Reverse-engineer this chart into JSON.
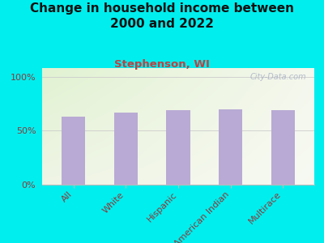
{
  "title": "Change in household income between\n2000 and 2022",
  "subtitle": "Stephenson, WI",
  "categories": [
    "All",
    "White",
    "Hispanic",
    "American Indian",
    "Multirace"
  ],
  "values": [
    63,
    67,
    69,
    70,
    69
  ],
  "bar_color": "#b8aad4",
  "background_outer": "#00EEEE",
  "title_color": "#111111",
  "subtitle_color": "#c04040",
  "tick_label_color": "#8b3a3a",
  "ytick_labels": [
    "0%",
    "50%",
    "100%"
  ],
  "ytick_values": [
    0,
    50,
    100
  ],
  "ylim": [
    0,
    108
  ],
  "watermark": "City-Data.com",
  "title_fontsize": 11,
  "subtitle_fontsize": 9.5,
  "tick_fontsize": 8
}
